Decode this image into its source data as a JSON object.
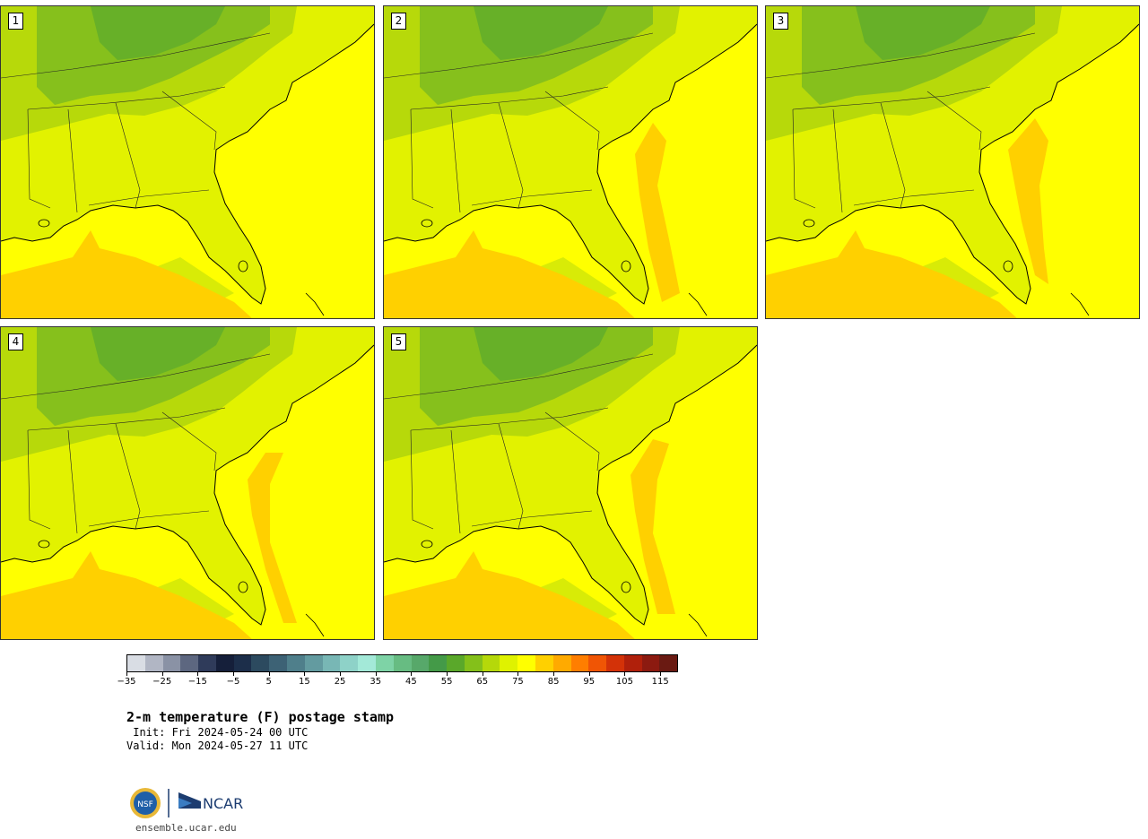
{
  "panels": [
    {
      "label": "1"
    },
    {
      "label": "2"
    },
    {
      "label": "3"
    },
    {
      "label": "4"
    },
    {
      "label": "5"
    }
  ],
  "colorbar": {
    "colors": [
      "#d9dde4",
      "#b1b6c4",
      "#8a92a5",
      "#5d6780",
      "#2f3b5a",
      "#151f3a",
      "#1c2e4a",
      "#2c4a5f",
      "#3d6275",
      "#4f7f8b",
      "#639ba0",
      "#78b7b5",
      "#8ed2c8",
      "#a3e9d8",
      "#7ed3a6",
      "#67bc82",
      "#57a86a",
      "#449a48",
      "#5aa82a",
      "#84c01a",
      "#b5d80a",
      "#dff200",
      "#ffff00",
      "#ffd000",
      "#ffaa00",
      "#ff7e00",
      "#f05505",
      "#d33208",
      "#b0200b",
      "#8c1a10",
      "#6a1a12"
    ],
    "ticks": [
      "−35",
      "−25",
      "−15",
      "−5",
      "5",
      "15",
      "25",
      "35",
      "45",
      "55",
      "65",
      "75",
      "85",
      "95",
      "105",
      "115"
    ]
  },
  "title": "2-m temperature (F) postage stamp",
  "init": " Init: Fri 2024-05-24 00 UTC",
  "valid": "Valid: Mon 2024-05-27 11 UTC",
  "footer": {
    "nsf_logo_text": "NSF",
    "ncar_logo_text": "NCAR",
    "site": "ensemble.ucar.edu"
  }
}
